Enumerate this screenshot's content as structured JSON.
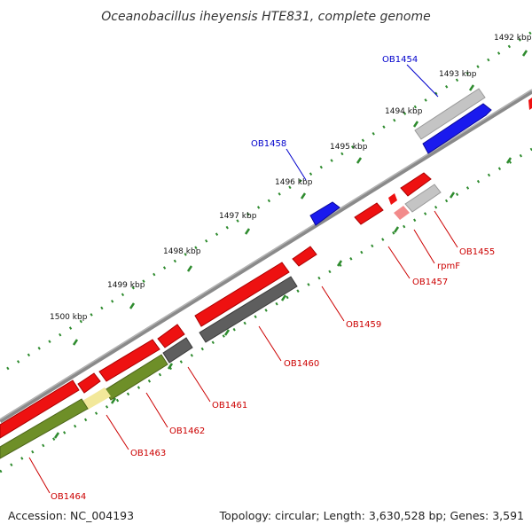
{
  "title": "Oceanobacillus iheyensis HTE831, complete genome",
  "footer": {
    "accession": "Accession: NC_004193",
    "summary": "Topology: circular; Length: 3,630,528 bp; Genes: 3,591"
  },
  "colors": {
    "backbone": "#7a7a7a",
    "ticks": "#2e8b2e",
    "label_red": "#cc0000",
    "label_blue": "#0000cc",
    "gene_red": "#ee1111",
    "gene_blue": "#1a1aee",
    "gene_gray": "#bbbbbb",
    "gene_dark": "#5a5a5a",
    "gene_olive": "#6e8f28",
    "gene_yellow": "#f2e89a",
    "gene_pink": "#f08080"
  },
  "scale_labels": [
    "1492 kbp",
    "1493 kbp",
    "1494 kbp",
    "1495 kbp",
    "1496 kbp",
    "1497 kbp",
    "1498 kbp",
    "1499 kbp",
    "1500 kbp"
  ],
  "gene_labels": [
    {
      "text": "OB1454",
      "strand": "outer"
    },
    {
      "text": "OB1458",
      "strand": "outer"
    },
    {
      "text": "OB1455",
      "strand": "inner"
    },
    {
      "text": "rpmF",
      "strand": "inner"
    },
    {
      "text": "OB1457",
      "strand": "inner"
    },
    {
      "text": "OB1459",
      "strand": "inner"
    },
    {
      "text": "OB1460",
      "strand": "inner"
    },
    {
      "text": "OB1461",
      "strand": "inner"
    },
    {
      "text": "OB1462",
      "strand": "inner"
    },
    {
      "text": "OB1463",
      "strand": "inner"
    },
    {
      "text": "OB1464",
      "strand": "inner"
    }
  ]
}
